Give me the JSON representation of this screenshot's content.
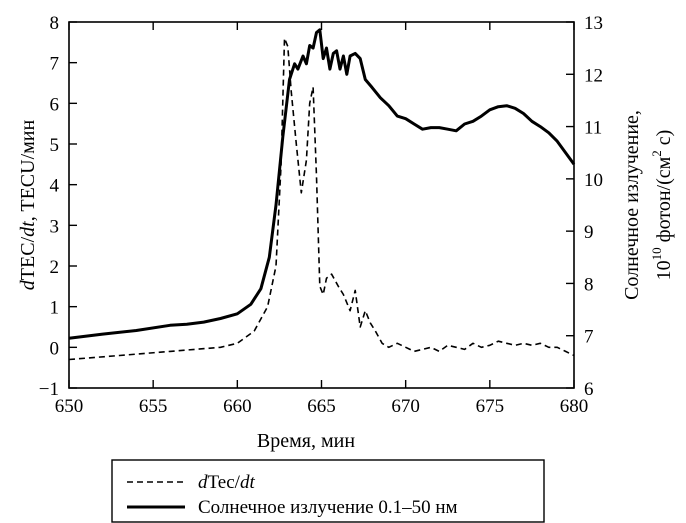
{
  "chart_data": {
    "type": "line",
    "title": "",
    "xlabel": "Время, мин",
    "ylabel_left": {
      "pre": "d",
      "mid": "TEC/",
      "dt": "dt",
      "post": ", TECU/мин"
    },
    "ylabel_right_line1": "Солнечное излучение,",
    "ylabel_right_line2": {
      "base": "10",
      "exp": "10",
      "text": " фотон/(см",
      "exp2": "2",
      "end": " с)"
    },
    "xlim": [
      650,
      680
    ],
    "ylim_left": [
      -1,
      8
    ],
    "ylim_right": [
      6,
      13
    ],
    "x_ticks": [
      "650",
      "655",
      "660",
      "665",
      "670",
      "675",
      "680"
    ],
    "y_left_ticks": [
      "−1",
      "0",
      "1",
      "2",
      "3",
      "4",
      "5",
      "6",
      "7",
      "8"
    ],
    "y_right_ticks": [
      "6",
      "7",
      "8",
      "9",
      "10",
      "11",
      "12",
      "13"
    ],
    "legend": {
      "placement": "bottom-center",
      "entry1": {
        "italic_pre": "d",
        "text": "Tec/",
        "italic_post": "dt"
      },
      "entry2": "Солнечное излучение 0.1–50 нм"
    },
    "series": [
      {
        "axis": "left",
        "style": "dashed",
        "x": [
          650,
          653,
          656,
          659,
          660,
          661,
          661.8,
          662.3,
          662.6,
          662.8,
          663.0,
          663.2,
          663.5,
          663.8,
          664.1,
          664.3,
          664.5,
          664.7,
          664.9,
          665.1,
          665.3,
          665.6,
          666.0,
          666.3,
          666.7,
          667.0,
          667.3,
          667.6,
          667.9,
          668.2,
          668.6,
          669.0,
          669.5,
          670.0,
          670.5,
          671.0,
          671.5,
          672.0,
          672.5,
          673.0,
          673.5,
          674.0,
          674.5,
          675.0,
          675.5,
          676.0,
          676.5,
          677.0,
          677.5,
          678.0,
          678.5,
          679.0,
          679.5,
          680.0
        ],
        "y": [
          -0.3,
          -0.2,
          -0.1,
          0.0,
          0.1,
          0.4,
          1.0,
          2.0,
          4.5,
          7.6,
          7.4,
          6.3,
          5.0,
          3.8,
          4.6,
          6.0,
          6.4,
          4.2,
          1.5,
          1.3,
          1.7,
          1.8,
          1.5,
          1.3,
          0.9,
          1.4,
          0.5,
          0.9,
          0.6,
          0.4,
          0.1,
          0.0,
          0.1,
          0.0,
          -0.1,
          -0.05,
          0.0,
          -0.1,
          0.05,
          0.0,
          -0.05,
          0.1,
          0.0,
          0.05,
          0.15,
          0.1,
          0.05,
          0.1,
          0.05,
          0.1,
          0.0,
          0.0,
          -0.1,
          -0.2
        ]
      },
      {
        "axis": "right",
        "style": "solid",
        "name": "Солнечное излучение 0.1–50 нм",
        "x": [
          650,
          652,
          654,
          656,
          657,
          658,
          659,
          660,
          660.8,
          661.4,
          661.9,
          662.3,
          662.7,
          663.1,
          663.4,
          663.6,
          663.9,
          664.1,
          664.3,
          664.5,
          664.7,
          664.9,
          665.1,
          665.3,
          665.5,
          665.7,
          665.9,
          666.1,
          666.3,
          666.5,
          666.7,
          667.0,
          667.3,
          667.6,
          668.0,
          668.5,
          669.0,
          669.5,
          670.0,
          670.5,
          671.0,
          671.5,
          672.0,
          672.5,
          673.0,
          673.5,
          674.0,
          674.5,
          675.0,
          675.5,
          676.0,
          676.5,
          677.0,
          677.5,
          678.0,
          678.5,
          679.0,
          679.5,
          680.0
        ],
        "y": [
          6.95,
          7.03,
          7.1,
          7.2,
          7.22,
          7.26,
          7.33,
          7.42,
          7.6,
          7.9,
          8.5,
          9.5,
          10.8,
          11.9,
          12.2,
          12.1,
          12.35,
          12.2,
          12.55,
          12.5,
          12.8,
          12.85,
          12.3,
          12.5,
          12.1,
          12.4,
          12.45,
          12.1,
          12.35,
          12.0,
          12.35,
          12.4,
          12.3,
          11.9,
          11.75,
          11.55,
          11.4,
          11.2,
          11.15,
          11.05,
          10.95,
          10.98,
          10.98,
          10.95,
          10.92,
          11.05,
          11.1,
          11.2,
          11.32,
          11.38,
          11.4,
          11.35,
          11.25,
          11.1,
          11.0,
          10.88,
          10.72,
          10.5,
          10.28
        ]
      }
    ]
  }
}
